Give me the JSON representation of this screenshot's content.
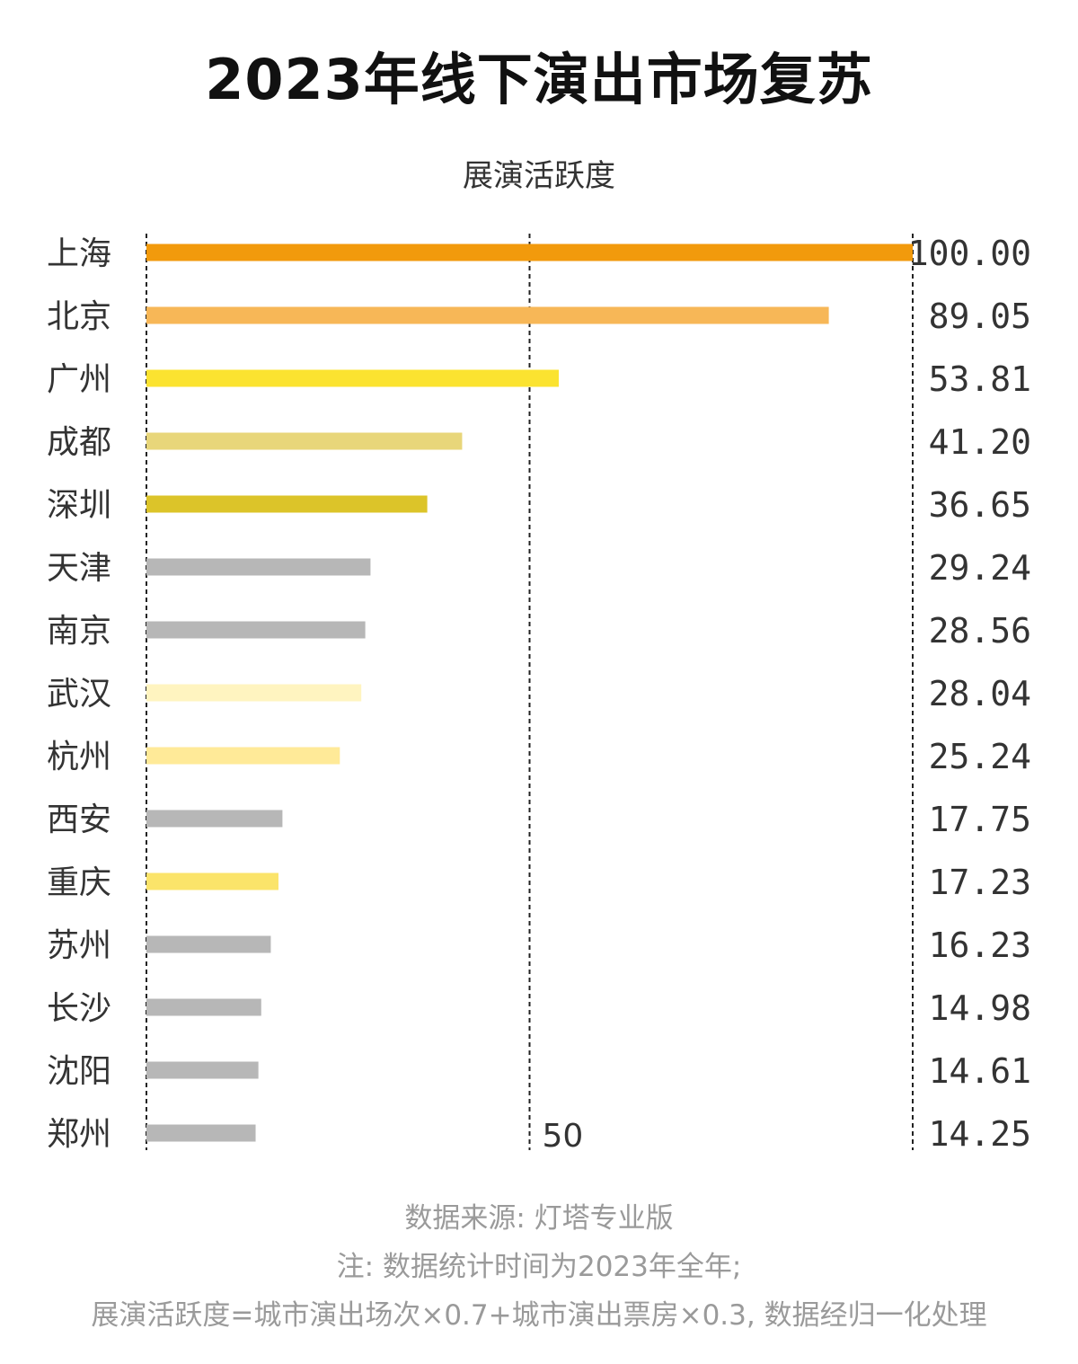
{
  "title": "2023年线下演出市场复苏",
  "subtitle": "展演活跃度",
  "footer": {
    "source": "数据来源: 灯塔专业版",
    "note1": "注: 数据统计时间为2023年全年;",
    "note2": "展演活跃度=城市演出场次×0.7+城市演出票房×0.3, 数据经归一化处理"
  },
  "chart_data": {
    "type": "bar",
    "orientation": "horizontal",
    "title": "2023年线下演出市场复苏",
    "subtitle": "展演活跃度",
    "categories": [
      "上海",
      "北京",
      "广州",
      "成都",
      "深圳",
      "天津",
      "南京",
      "武汉",
      "杭州",
      "西安",
      "重庆",
      "苏州",
      "长沙",
      "沈阳",
      "郑州"
    ],
    "values": [
      100.0,
      89.05,
      53.81,
      41.2,
      36.65,
      29.24,
      28.56,
      28.04,
      25.24,
      17.75,
      17.23,
      16.23,
      14.98,
      14.61,
      14.25
    ],
    "value_labels": [
      "100.00",
      "89.05",
      "53.81",
      "41.20",
      "36.65",
      "29.24",
      "28.56",
      "28.04",
      "25.24",
      "17.75",
      "17.23",
      "16.23",
      "14.98",
      "14.61",
      "14.25"
    ],
    "colors": [
      "#F29A0C",
      "#F7B757",
      "#FBE330",
      "#E8D67A",
      "#DCC429",
      "#B7B7B7",
      "#B7B7B7",
      "#FFF4C0",
      "#FFEA98",
      "#B7B7B7",
      "#FBE46A",
      "#B7B7B7",
      "#B7B7B7",
      "#B7B7B7",
      "#B7B7B7"
    ],
    "xlim": [
      0,
      100
    ],
    "gridlines": [
      0,
      50,
      100
    ],
    "tick_labels_shown": [
      "50"
    ],
    "grid": "dashed vertical"
  }
}
